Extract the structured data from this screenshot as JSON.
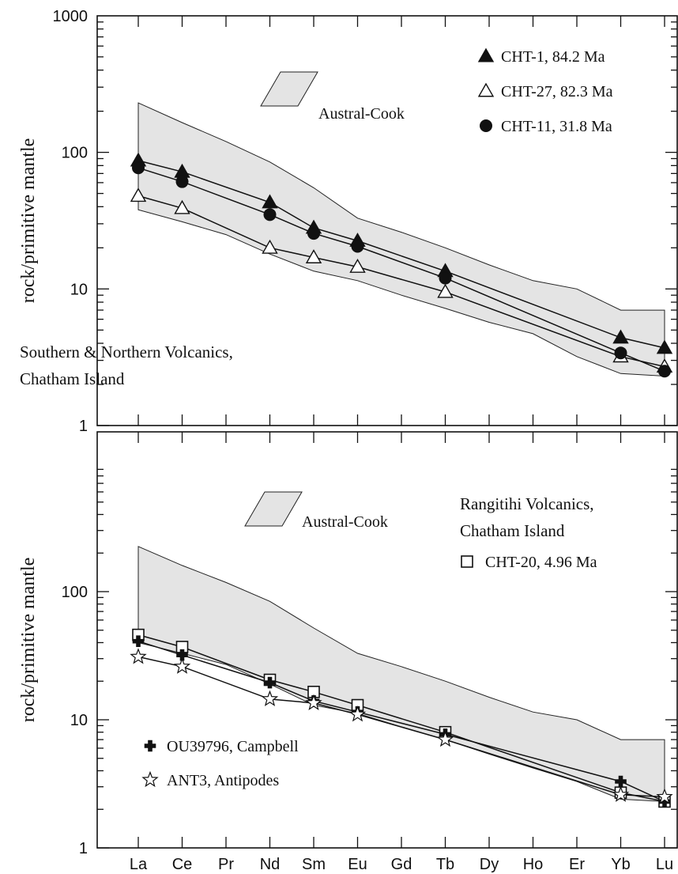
{
  "chart_data": [
    {
      "type": "line",
      "panel": "top",
      "yscale": "log",
      "ylim": [
        1,
        1000
      ],
      "yticks": [
        "1",
        "10",
        "100",
        "1000"
      ],
      "ylabel": "rock/primitive mantle",
      "categories": [
        "La",
        "Ce",
        "Pr",
        "Nd",
        "Sm",
        "Eu",
        "Gd",
        "Tb",
        "Dy",
        "Ho",
        "Er",
        "Yb",
        "Lu"
      ],
      "annotation_lines": [
        "Southern & Northern Volcanics,",
        "Chatham Island"
      ],
      "field": {
        "label": "Austral-Cook",
        "upper": [
          230,
          165,
          120,
          85,
          55,
          33,
          26,
          20,
          15,
          11.5,
          10,
          7,
          7
        ],
        "lower": [
          38,
          31,
          25,
          18,
          13.5,
          11.5,
          9,
          7.2,
          5.7,
          4.7,
          3.2,
          2.4,
          2.3
        ]
      },
      "series": [
        {
          "name": "CHT-1, 84.2 Ma",
          "marker": "filled-triangle",
          "x": [
            "La",
            "Ce",
            "Nd",
            "Sm",
            "Eu",
            "Tb",
            "Yb",
            "Lu"
          ],
          "values": [
            87,
            72,
            43,
            28,
            22.5,
            13.5,
            4.4,
            3.7
          ]
        },
        {
          "name": "CHT-27, 82.3 Ma",
          "marker": "open-triangle",
          "x": [
            "La",
            "Ce",
            "Nd",
            "Sm",
            "Eu",
            "Tb",
            "Yb",
            "Lu"
          ],
          "values": [
            48,
            39,
            20,
            17,
            14.5,
            9.5,
            3.2,
            2.7
          ]
        },
        {
          "name": "CHT-11, 31.8 Ma",
          "marker": "filled-circle",
          "x": [
            "La",
            "Ce",
            "Nd",
            "Sm",
            "Eu",
            "Tb",
            "Yb",
            "Lu"
          ],
          "values": [
            77,
            61,
            35,
            25.5,
            20.5,
            12,
            3.4,
            2.5
          ]
        }
      ]
    },
    {
      "type": "line",
      "panel": "bottom",
      "yscale": "log",
      "ylim": [
        1,
        1000
      ],
      "yticks": [
        "1",
        "10",
        "100"
      ],
      "ylabel": "rock/primitive mantle",
      "categories": [
        "La",
        "Ce",
        "Pr",
        "Nd",
        "Sm",
        "Eu",
        "Gd",
        "Tb",
        "Dy",
        "Ho",
        "Er",
        "Yb",
        "Lu"
      ],
      "annotation_lines": [
        "Rangitihi Volcanics,",
        "Chatham Island"
      ],
      "field": {
        "label": "Austral-Cook",
        "upper": [
          225,
          160,
          118,
          84,
          52,
          33,
          26,
          20,
          15,
          11.5,
          10,
          7,
          7
        ],
        "lower": [
          40,
          33,
          27,
          19,
          13,
          11.2,
          8.8,
          7,
          5.4,
          4.2,
          3.3,
          2.4,
          2.3
        ]
      },
      "series": [
        {
          "name": "CHT-20, 4.96 Ma",
          "marker": "open-square",
          "x": [
            "La",
            "Ce",
            "Nd",
            "Sm",
            "Eu",
            "Tb",
            "Yb",
            "Lu"
          ],
          "values": [
            46,
            37,
            20.5,
            16.5,
            13,
            8,
            2.7,
            2.3
          ]
        },
        {
          "name": "OU39796, Campbell",
          "marker": "plus",
          "x": [
            "La",
            "Ce",
            "Nd",
            "Sm",
            "Eu",
            "Tb",
            "Yb",
            "Lu"
          ],
          "values": [
            41,
            32,
            19.5,
            14,
            11.5,
            7.7,
            3.3,
            2.3
          ]
        },
        {
          "name": "ANT3, Antipodes",
          "marker": "open-star",
          "x": [
            "La",
            "Ce",
            "Nd",
            "Sm",
            "Eu",
            "Tb",
            "Yb",
            "Lu"
          ],
          "values": [
            31,
            26,
            14.5,
            13.5,
            11,
            7,
            2.6,
            2.5
          ]
        }
      ]
    }
  ]
}
